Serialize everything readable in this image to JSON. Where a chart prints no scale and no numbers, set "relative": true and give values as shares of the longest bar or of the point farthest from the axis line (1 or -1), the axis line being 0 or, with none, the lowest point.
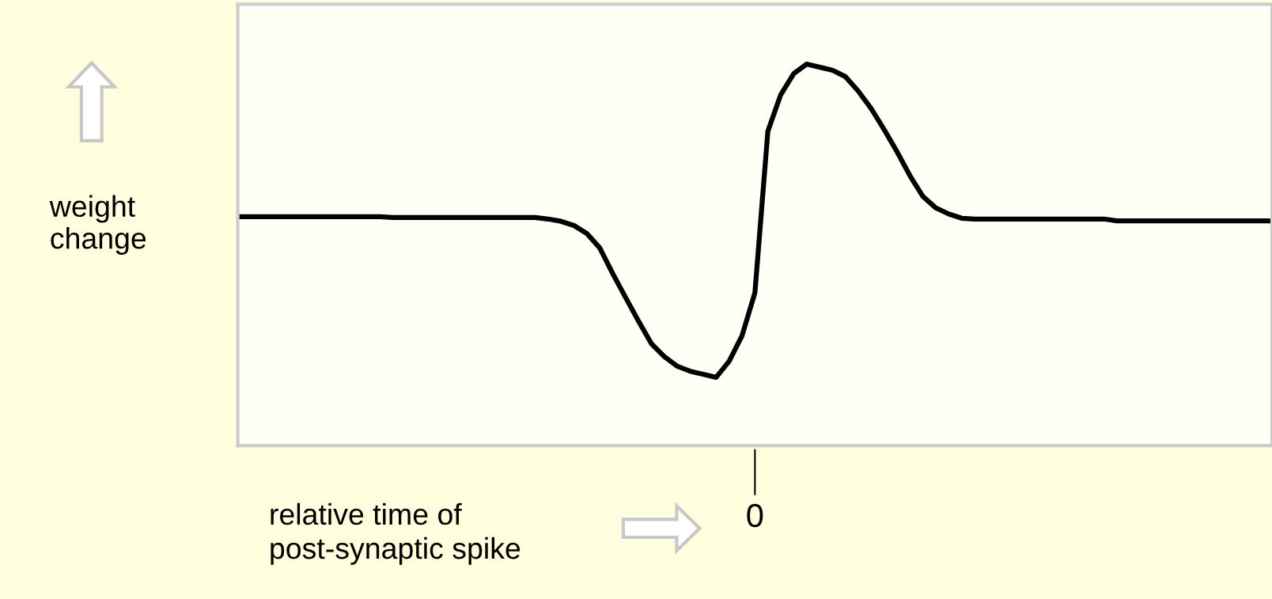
{
  "chart_data": {
    "type": "line",
    "relative": true,
    "xlabel": "relative time of\npost-synaptic spike",
    "ylabel": "weight\nchange",
    "marker": "none",
    "line_style": "solid",
    "annotations": [
      "0"
    ],
    "categories": [
      null,
      null,
      null,
      null,
      null,
      null,
      null,
      null,
      null,
      null,
      null,
      null,
      null,
      null,
      null,
      null,
      null,
      null,
      null,
      null,
      null,
      null,
      null,
      null,
      null,
      null,
      null,
      null,
      null,
      null,
      null,
      null,
      null,
      null,
      null,
      null,
      null,
      null,
      null,
      null,
      null,
      null,
      null,
      null,
      null,
      null,
      null,
      null,
      null,
      null,
      null,
      null,
      null,
      null,
      null,
      null,
      null,
      null,
      null,
      null,
      null,
      null,
      null,
      null,
      null,
      null,
      null,
      null,
      null,
      null,
      null,
      null,
      null,
      null,
      null,
      null,
      null,
      null,
      null,
      null,
      null
    ],
    "series": [
      {
        "color": "#000000",
        "values": [
          0.6,
          0.6,
          0.6,
          0.6,
          0.6,
          0.6,
          0.6,
          0.6,
          0.6,
          0.6,
          0.6,
          0.6,
          0.598,
          0.598,
          0.598,
          0.598,
          0.598,
          0.598,
          0.598,
          0.598,
          0.598,
          0.598,
          0.598,
          0.598,
          0.594,
          0.588,
          0.577,
          0.556,
          0.518,
          0.451,
          0.388,
          0.326,
          0.267,
          0.233,
          0.208,
          0.195,
          0.187,
          0.179,
          0.221,
          0.288,
          0.401,
          0.824,
          0.92,
          0.975,
          1,
          0.992,
          0.984,
          0.967,
          0.929,
          0.883,
          0.828,
          0.77,
          0.707,
          0.653,
          0.623,
          0.607,
          0.596,
          0.594,
          0.594,
          0.594,
          0.594,
          0.594,
          0.594,
          0.594,
          0.594,
          0.594,
          0.594,
          0.594,
          0.589,
          0.589,
          0.589,
          0.589,
          0.589,
          0.589,
          0.589,
          0.589,
          0.589,
          0.589,
          0.589,
          0.589,
          0.589
        ]
      }
    ]
  }
}
